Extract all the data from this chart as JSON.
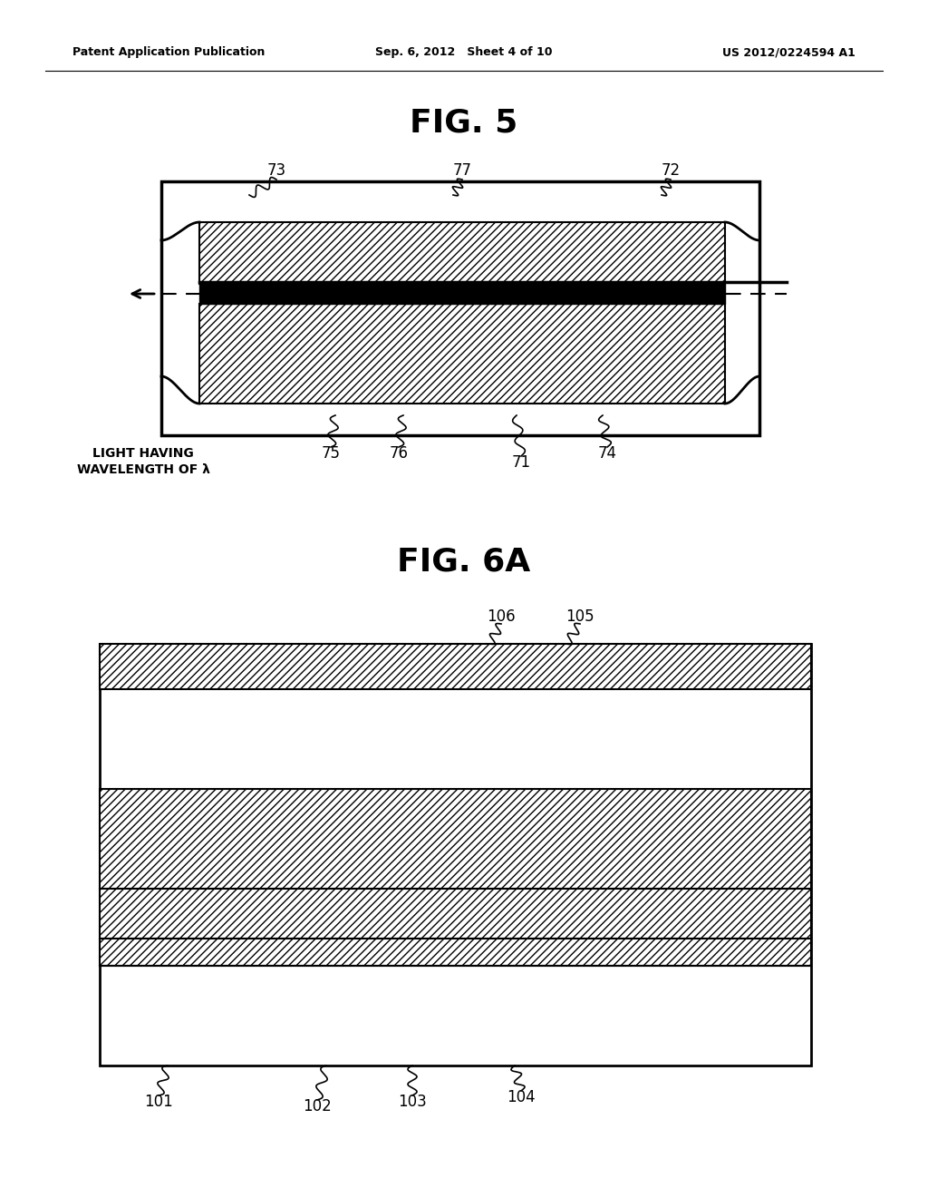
{
  "background_color": "#ffffff",
  "header_left": "Patent Application Publication",
  "header_center": "Sep. 6, 2012   Sheet 4 of 10",
  "header_right": "US 2012/0224594 A1",
  "fig5_title": "FIG. 5",
  "fig6a_title": "FIG. 6A"
}
